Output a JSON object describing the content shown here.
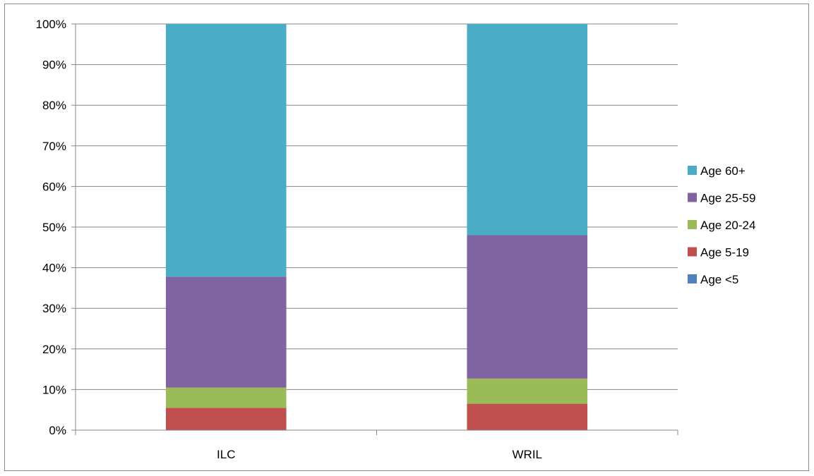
{
  "chart_data": {
    "type": "bar",
    "stacked": true,
    "categories": [
      "ILC",
      "WRIL"
    ],
    "series": [
      {
        "name": "Age <5",
        "color": "#4f81bd",
        "values": [
          0,
          0
        ]
      },
      {
        "name": "Age 5-19",
        "color": "#c0504d",
        "values": [
          5.5,
          6.5
        ]
      },
      {
        "name": "Age 20-24",
        "color": "#9bbb59",
        "values": [
          5.0,
          6.2
        ]
      },
      {
        "name": "Age 25-59",
        "color": "#8064a2",
        "values": [
          27.3,
          35.3
        ]
      },
      {
        "name": "Age 60+",
        "color": "#4bacc6",
        "values": [
          62.2,
          52.0
        ]
      }
    ],
    "ylim": [
      0,
      100
    ],
    "yticks": [
      "0%",
      "10%",
      "20%",
      "30%",
      "40%",
      "50%",
      "60%",
      "70%",
      "80%",
      "90%",
      "100%"
    ],
    "grid": true,
    "legend_position": "right",
    "title": "",
    "xlabel": "",
    "ylabel": ""
  }
}
